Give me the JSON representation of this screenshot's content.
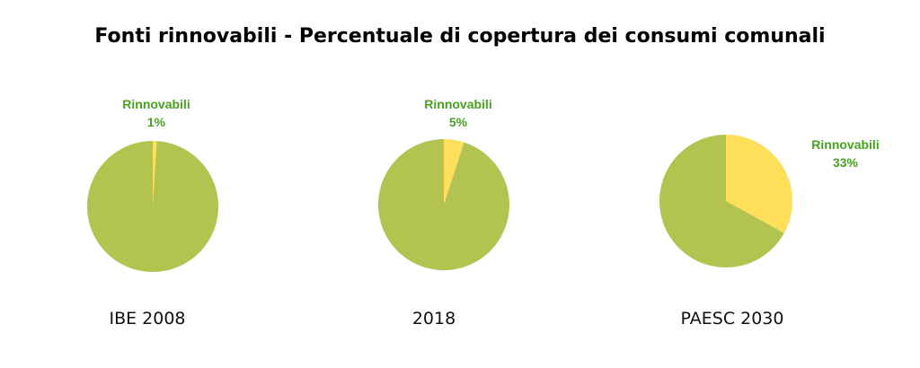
{
  "title": "Fonti rinnovabili - Percentuale di copertura dei consumi comunali",
  "colors": {
    "renewable": "#ffdf5a",
    "other": "#b2c34f",
    "label": "#47a020"
  },
  "chart_data": [
    {
      "type": "pie",
      "caption": "IBE 2008",
      "slices": [
        {
          "name": "Rinnovabili",
          "value": 1,
          "label": "1%",
          "color": "#ffdf5a"
        },
        {
          "name": "",
          "value": 99,
          "label": "",
          "color": "#b2c34f"
        }
      ]
    },
    {
      "type": "pie",
      "caption": "2018",
      "slices": [
        {
          "name": "Rinnovabili",
          "value": 5,
          "label": "5%",
          "color": "#ffdf5a"
        },
        {
          "name": "",
          "value": 95,
          "label": "",
          "color": "#b2c34f"
        }
      ]
    },
    {
      "type": "pie",
      "caption": "PAESC 2030",
      "slices": [
        {
          "name": "Rinnovabili",
          "value": 33,
          "label": "33%",
          "color": "#ffdf5a"
        },
        {
          "name": "",
          "value": 67,
          "label": "",
          "color": "#b2c34f"
        }
      ]
    }
  ]
}
